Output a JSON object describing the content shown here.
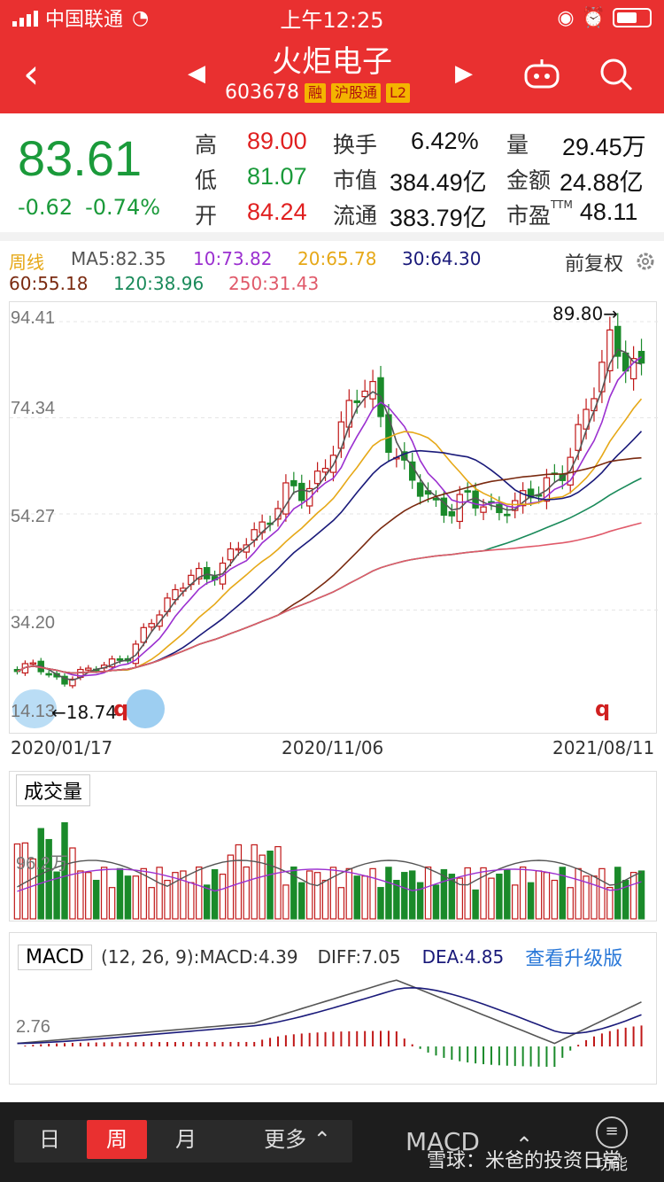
{
  "status": {
    "carrier": "中国联通",
    "time": "上午12:25"
  },
  "header": {
    "title": "火炬电子",
    "code": "603678",
    "tags": [
      "融",
      "沪股通",
      "L2"
    ]
  },
  "quote": {
    "price": "83.61",
    "change": "-0.62",
    "change_pct": "-0.74%",
    "high_label": "高",
    "high": "89.00",
    "low_label": "低",
    "low": "81.07",
    "open_label": "开",
    "open": "84.24",
    "turnover_label": "换手",
    "turnover": "6.42%",
    "mktcap_label": "市值",
    "mktcap": "384.49亿",
    "float_label": "流通",
    "float": "383.79亿",
    "volume_label": "量",
    "volume": "29.45万",
    "amount_label": "金额",
    "amount": "24.88亿",
    "pe_label": "市盈",
    "pe_sup": "TTM",
    "pe": "48.11"
  },
  "ma_legend": {
    "period": "周线",
    "ma5": "MA5:82.35",
    "ma10": "10:73.82",
    "ma20": "20:65.78",
    "ma30": "30:64.30",
    "ma60": "60:55.18",
    "ma120": "120:38.96",
    "ma250": "250:31.43",
    "adjust": "前复权"
  },
  "colors": {
    "ma5": "#555555",
    "ma10": "#9b30d0",
    "ma20": "#e6a817",
    "ma30": "#1a1a7a",
    "ma60": "#7a2a10",
    "ma120": "#1a8a5a",
    "ma250": "#e05a6a",
    "up": "#c01818",
    "down": "#1a8a2a"
  },
  "kline": {
    "y_labels": [
      "94.41",
      "74.34",
      "54.27",
      "34.20",
      "14.13"
    ],
    "dates": [
      "2020/01/17",
      "2020/11/06",
      "2021/08/11"
    ],
    "max_mark": "89.80→",
    "min_mark": "←18.74",
    "q": "q"
  },
  "volume": {
    "title": "成交量",
    "y_label": "96.2万"
  },
  "macd": {
    "title": "MACD",
    "params": "(12, 26, 9):MACD:4.39",
    "diff": "DIFF:7.05",
    "dea": "DEA:4.85",
    "upgrade": "查看升级版",
    "y_label": "2.76"
  },
  "bottom": {
    "tabs": [
      "日",
      "周",
      "月"
    ],
    "more": "更多",
    "indicator": "MACD",
    "function": "功能",
    "watermark": "雪球：米爸的投资日常"
  },
  "chart_data": [
    {
      "type": "candlestick",
      "title": "周线",
      "x_start": "2020/01/17",
      "x_end": "2021/08/11",
      "ylim": [
        14.13,
        94.41
      ],
      "close_trend": [
        21,
        23,
        20,
        18.74,
        21,
        22,
        23,
        24,
        30,
        34,
        38,
        42,
        40,
        44,
        48,
        50,
        54,
        60,
        58,
        62,
        70,
        78,
        82,
        70,
        64,
        60,
        56,
        54,
        58,
        56,
        54,
        56,
        58,
        60,
        62,
        70,
        80,
        89.8,
        86,
        83.61
      ]
    },
    {
      "type": "bar",
      "title": "成交量",
      "y_marker": "96.2万"
    },
    {
      "type": "line",
      "title": "MACD",
      "series": [
        {
          "name": "DIFF",
          "last": 7.05
        },
        {
          "name": "DEA",
          "last": 4.85
        },
        {
          "name": "MACD",
          "last": 4.39
        }
      ]
    }
  ]
}
